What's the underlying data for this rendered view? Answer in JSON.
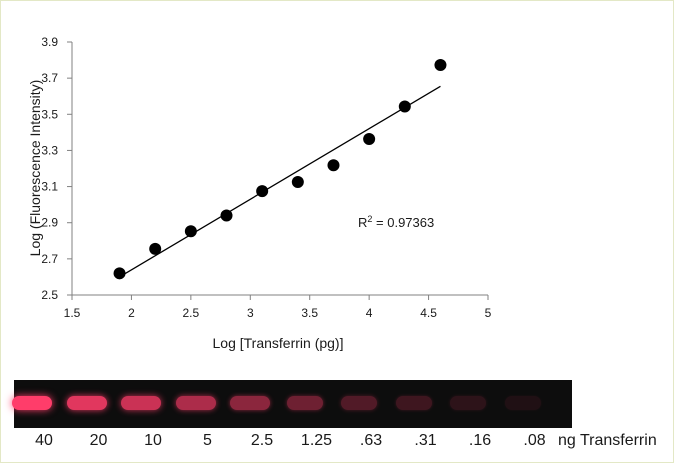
{
  "chart_data": {
    "type": "scatter",
    "xlabel": "Log [Transferrin (pg)]",
    "ylabel": "Log (Fluorescence Intensity)",
    "xlim": [
      1.5,
      5
    ],
    "ylim": [
      2.5,
      3.9
    ],
    "xticks": [
      "1.5",
      "2",
      "2.5",
      "3",
      "3.5",
      "4",
      "4.5",
      "5"
    ],
    "yticks": [
      "2.5",
      "2.7",
      "2.9",
      "3.1",
      "3.3",
      "3.5",
      "3.7",
      "3.9"
    ],
    "x": [
      1.9,
      2.2,
      2.5,
      2.8,
      3.1,
      3.4,
      3.7,
      4.0,
      4.3,
      4.6
    ],
    "y": [
      2.62,
      2.755,
      2.853,
      2.94,
      3.075,
      3.125,
      3.218,
      3.363,
      3.543,
      3.773
    ],
    "trendline": {
      "x": [
        1.9,
        4.6
      ],
      "y": [
        2.6,
        3.655
      ]
    },
    "annotation": {
      "prefix": "R",
      "sup": "2",
      "suffix": " = 0.97363"
    },
    "marker_color": "#000000",
    "grid": false,
    "legend": "none"
  },
  "gel": {
    "background": "#0d0d0d",
    "band_color": "#ff3d6a",
    "lanes": [
      {
        "label": "40",
        "intensity": 1.0
      },
      {
        "label": "20",
        "intensity": 0.88
      },
      {
        "label": "10",
        "intensity": 0.78
      },
      {
        "label": "5",
        "intensity": 0.66
      },
      {
        "label": "2.5",
        "intensity": 0.52
      },
      {
        "label": "1.25",
        "intensity": 0.4
      },
      {
        "label": ".63",
        "intensity": 0.28
      },
      {
        "label": ".31",
        "intensity": 0.2
      },
      {
        "label": ".16",
        "intensity": 0.13
      },
      {
        "label": ".08",
        "intensity": 0.08
      }
    ],
    "units_label": "ng Transferrin"
  }
}
